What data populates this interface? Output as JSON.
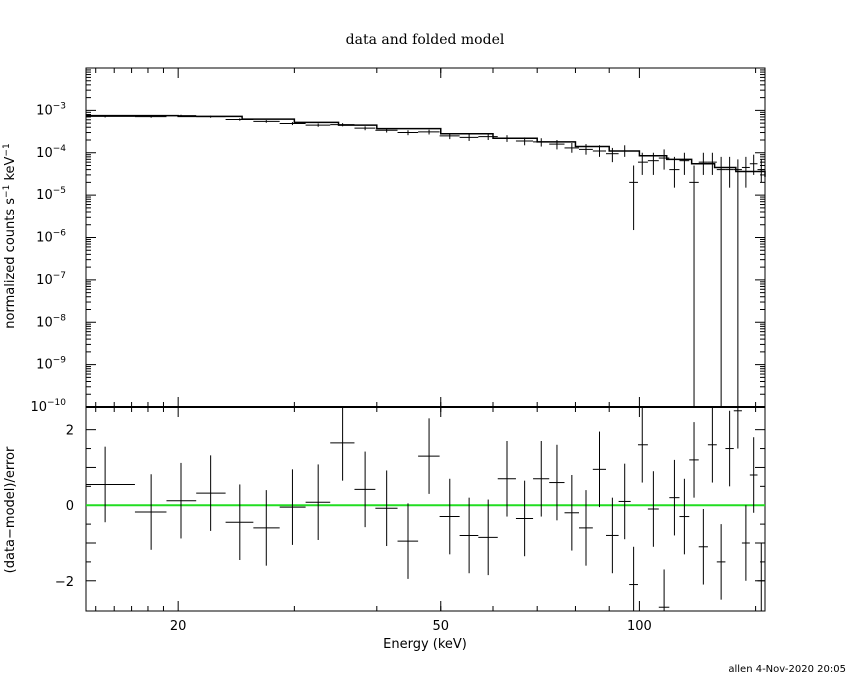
{
  "chart_data": [
    {
      "panel": "top",
      "type": "scatter",
      "title": "data and folded model",
      "xlabel": "Energy (keV)",
      "ylabel": "normalized counts s",
      "ylabel_sup1": "−1",
      "ylabel_mid": "keV",
      "ylabel_sup2": "−1",
      "x_scale": "log",
      "y_scale": "log",
      "xlim": [
        14.5,
        155
      ],
      "ylim": [
        1e-10,
        0.01
      ],
      "x_ticks": [
        20,
        50,
        100
      ],
      "y_ticks": [
        {
          "base": "10",
          "exp": "−3",
          "value": 0.001
        },
        {
          "base": "10",
          "exp": "−4",
          "value": 0.0001
        },
        {
          "base": "10",
          "exp": "−5",
          "value": 1e-05
        },
        {
          "base": "10",
          "exp": "−6",
          "value": 1e-06
        },
        {
          "base": "10",
          "exp": "−7",
          "value": 1e-07
        },
        {
          "base": "10",
          "exp": "−8",
          "value": 1e-08
        },
        {
          "base": "10",
          "exp": "−9",
          "value": 1e-09
        },
        {
          "base": "10",
          "exp": "−10",
          "value": 1e-10
        }
      ],
      "series": [
        {
          "kind": "data",
          "points": [
            {
              "x": 15.5,
              "xlo": 14.5,
              "xhi": 17.2,
              "y": 0.00072,
              "ylo": 0.00068,
              "yhi": 0.00076
            },
            {
              "x": 18.2,
              "xlo": 17.2,
              "xhi": 19.2,
              "y": 0.00071,
              "ylo": 0.00067,
              "yhi": 0.00075
            },
            {
              "x": 20.2,
              "xlo": 19.2,
              "xhi": 21.3,
              "y": 0.00075,
              "ylo": 0.00071,
              "yhi": 0.00079
            },
            {
              "x": 22.4,
              "xlo": 21.3,
              "xhi": 23.6,
              "y": 0.00071,
              "ylo": 0.00067,
              "yhi": 0.00075
            },
            {
              "x": 24.8,
              "xlo": 23.6,
              "xhi": 26.0,
              "y": 0.00061,
              "ylo": 0.00057,
              "yhi": 0.00065
            },
            {
              "x": 27.2,
              "xlo": 26.0,
              "xhi": 28.5,
              "y": 0.00055,
              "ylo": 0.00051,
              "yhi": 0.00059
            },
            {
              "x": 29.8,
              "xlo": 28.5,
              "xhi": 31.2,
              "y": 0.00049,
              "ylo": 0.00045,
              "yhi": 0.00053
            },
            {
              "x": 32.6,
              "xlo": 31.2,
              "xhi": 34.0,
              "y": 0.00045,
              "ylo": 0.00041,
              "yhi": 0.00049
            },
            {
              "x": 35.5,
              "xlo": 34.0,
              "xhi": 37.0,
              "y": 0.00046,
              "ylo": 0.00042,
              "yhi": 0.0005
            },
            {
              "x": 38.4,
              "xlo": 37.0,
              "xhi": 39.8,
              "y": 0.00038,
              "ylo": 0.00034,
              "yhi": 0.00042
            },
            {
              "x": 41.4,
              "xlo": 39.8,
              "xhi": 43.0,
              "y": 0.00034,
              "ylo": 0.0003,
              "yhi": 0.00038
            },
            {
              "x": 44.6,
              "xlo": 43.0,
              "xhi": 46.2,
              "y": 0.0003,
              "ylo": 0.00026,
              "yhi": 0.00034
            },
            {
              "x": 48.0,
              "xlo": 46.2,
              "xhi": 49.8,
              "y": 0.00031,
              "ylo": 0.00027,
              "yhi": 0.00035
            },
            {
              "x": 51.6,
              "xlo": 49.8,
              "xhi": 53.4,
              "y": 0.00025,
              "ylo": 0.00021,
              "yhi": 0.00029
            },
            {
              "x": 55.2,
              "xlo": 53.4,
              "xhi": 57.0,
              "y": 0.00023,
              "ylo": 0.00019,
              "yhi": 0.00027
            },
            {
              "x": 59.0,
              "xlo": 57.0,
              "xhi": 61.0,
              "y": 0.00024,
              "ylo": 0.0002,
              "yhi": 0.00028
            },
            {
              "x": 63.0,
              "xlo": 61.0,
              "xhi": 65.0,
              "y": 0.00022,
              "ylo": 0.00018,
              "yhi": 0.00026
            },
            {
              "x": 67.0,
              "xlo": 65.0,
              "xhi": 69.0,
              "y": 0.00019,
              "ylo": 0.00015,
              "yhi": 0.00023
            },
            {
              "x": 71.0,
              "xlo": 69.0,
              "xhi": 73.0,
              "y": 0.00018,
              "ylo": 0.00014,
              "yhi": 0.00022
            },
            {
              "x": 75.0,
              "xlo": 73.0,
              "xhi": 77.0,
              "y": 0.00016,
              "ylo": 0.00012,
              "yhi": 0.0002
            },
            {
              "x": 79.0,
              "xlo": 77.0,
              "xhi": 81.0,
              "y": 0.00013,
              "ylo": 0.0001,
              "yhi": 0.00017
            },
            {
              "x": 83.0,
              "xlo": 81.0,
              "xhi": 85.0,
              "y": 0.00012,
              "ylo": 9e-05,
              "yhi": 0.00016
            },
            {
              "x": 87.0,
              "xlo": 85.0,
              "xhi": 89.0,
              "y": 0.00011,
              "ylo": 8e-05,
              "yhi": 0.00015
            },
            {
              "x": 91.0,
              "xlo": 89.0,
              "xhi": 93.0,
              "y": 9.5e-05,
              "ylo": 6e-05,
              "yhi": 0.00013
            },
            {
              "x": 95.0,
              "xlo": 93.0,
              "xhi": 97.0,
              "y": 0.00011,
              "ylo": 8e-05,
              "yhi": 0.00015
            },
            {
              "x": 98.0,
              "xlo": 96.5,
              "xhi": 99.5,
              "y": 2e-05,
              "ylo": 1.5e-06,
              "yhi": 5e-05
            },
            {
              "x": 101.0,
              "xlo": 99.5,
              "xhi": 103.0,
              "y": 6e-05,
              "ylo": 3e-05,
              "yhi": 0.0001
            },
            {
              "x": 105.0,
              "xlo": 103.0,
              "xhi": 107.0,
              "y": 6.5e-05,
              "ylo": 3e-05,
              "yhi": 0.0001
            },
            {
              "x": 109.0,
              "xlo": 107.0,
              "xhi": 111.0,
              "y": 7.5e-05,
              "ylo": 4e-05,
              "yhi": 0.00012
            },
            {
              "x": 113.0,
              "xlo": 111.0,
              "xhi": 115.0,
              "y": 4e-05,
              "ylo": 1.5e-05,
              "yhi": 8e-05
            },
            {
              "x": 117.0,
              "xlo": 115.0,
              "xhi": 119.0,
              "y": 6.5e-05,
              "ylo": 3e-05,
              "yhi": 0.0001
            },
            {
              "x": 121.0,
              "xlo": 119.0,
              "xhi": 123.0,
              "y": 2e-05,
              "ylo": 1e-10,
              "yhi": 5e-05
            },
            {
              "x": 125.0,
              "xlo": 123.0,
              "xhi": 127.0,
              "y": 6e-05,
              "ylo": 3e-05,
              "yhi": 0.0001
            },
            {
              "x": 129.0,
              "xlo": 127.0,
              "xhi": 131.0,
              "y": 6e-05,
              "ylo": 3e-05,
              "yhi": 0.0001
            },
            {
              "x": 133.0,
              "xlo": 131.0,
              "xhi": 135.0,
              "y": 4e-05,
              "ylo": 1e-10,
              "yhi": 8e-05
            },
            {
              "x": 137.0,
              "xlo": 135.0,
              "xhi": 139.0,
              "y": 4e-05,
              "ylo": 1.5e-05,
              "yhi": 8e-05
            },
            {
              "x": 141.0,
              "xlo": 139.0,
              "xhi": 143.0,
              "y": 4e-05,
              "ylo": 1e-10,
              "yhi": 7e-05
            },
            {
              "x": 145.0,
              "xlo": 143.0,
              "xhi": 147.0,
              "y": 4.5e-05,
              "ylo": 1.5e-05,
              "yhi": 8e-05
            },
            {
              "x": 149.0,
              "xlo": 147.0,
              "xhi": 151.0,
              "y": 5.5e-05,
              "ylo": 3e-05,
              "yhi": 9e-05
            },
            {
              "x": 153.0,
              "xlo": 151.0,
              "xhi": 155.0,
              "y": 4e-05,
              "ylo": 2e-05,
              "yhi": 7e-05
            }
          ]
        },
        {
          "kind": "model",
          "step": [
            {
              "x": 14.5,
              "y": 0.00075
            },
            {
              "x": 20.0,
              "y": 0.00072
            },
            {
              "x": 25.0,
              "y": 0.00062
            },
            {
              "x": 30.0,
              "y": 0.00052
            },
            {
              "x": 35.0,
              "y": 0.00045
            },
            {
              "x": 40.0,
              "y": 0.00037
            },
            {
              "x": 50.0,
              "y": 0.00028
            },
            {
              "x": 60.0,
              "y": 0.00022
            },
            {
              "x": 70.0,
              "y": 0.00018
            },
            {
              "x": 80.0,
              "y": 0.00014
            },
            {
              "x": 90.0,
              "y": 0.00011
            },
            {
              "x": 100.0,
              "y": 8.5e-05
            },
            {
              "x": 110.0,
              "y": 7e-05
            },
            {
              "x": 120.0,
              "y": 5.5e-05
            },
            {
              "x": 130.0,
              "y": 4.5e-05
            },
            {
              "x": 140.0,
              "y": 3.6e-05
            },
            {
              "x": 155.0,
              "y": 2.7e-05
            }
          ]
        }
      ]
    },
    {
      "panel": "bottom",
      "type": "scatter",
      "xlabel": "Energy (keV)",
      "ylabel": "(data−model)/error",
      "x_scale": "log",
      "y_scale": "linear",
      "xlim": [
        14.5,
        155
      ],
      "ylim": [
        -2.8,
        2.6
      ],
      "y_ticks": [
        2,
        0,
        -2
      ],
      "y_tick_labels": [
        "2",
        "0",
        "−2"
      ],
      "x_ticks": [
        20,
        50,
        100
      ],
      "zero_line_color": "#22dd22",
      "points": [
        {
          "x": 15.5,
          "xlo": 14.5,
          "xhi": 17.2,
          "y": 0.55,
          "ylo": -0.45,
          "yhi": 1.55
        },
        {
          "x": 18.2,
          "xlo": 17.2,
          "xhi": 19.2,
          "y": -0.18,
          "ylo": -1.18,
          "yhi": 0.82
        },
        {
          "x": 20.2,
          "xlo": 19.2,
          "xhi": 21.3,
          "y": 0.12,
          "ylo": -0.88,
          "yhi": 1.12
        },
        {
          "x": 22.4,
          "xlo": 21.3,
          "xhi": 23.6,
          "y": 0.32,
          "ylo": -0.68,
          "yhi": 1.32
        },
        {
          "x": 24.8,
          "xlo": 23.6,
          "xhi": 26.0,
          "y": -0.45,
          "ylo": -1.45,
          "yhi": 0.55
        },
        {
          "x": 27.2,
          "xlo": 26.0,
          "xhi": 28.5,
          "y": -0.6,
          "ylo": -1.6,
          "yhi": 0.4
        },
        {
          "x": 29.8,
          "xlo": 28.5,
          "xhi": 31.2,
          "y": -0.05,
          "ylo": -1.05,
          "yhi": 0.95
        },
        {
          "x": 32.6,
          "xlo": 31.2,
          "xhi": 34.0,
          "y": 0.08,
          "ylo": -0.92,
          "yhi": 1.08
        },
        {
          "x": 35.5,
          "xlo": 34.0,
          "xhi": 37.0,
          "y": 1.65,
          "ylo": 0.65,
          "yhi": 2.65
        },
        {
          "x": 38.4,
          "xlo": 37.0,
          "xhi": 39.8,
          "y": 0.42,
          "ylo": -0.58,
          "yhi": 1.42
        },
        {
          "x": 41.4,
          "xlo": 39.8,
          "xhi": 43.0,
          "y": -0.08,
          "ylo": -1.08,
          "yhi": 0.92
        },
        {
          "x": 44.6,
          "xlo": 43.0,
          "xhi": 46.2,
          "y": -0.95,
          "ylo": -1.95,
          "yhi": 0.05
        },
        {
          "x": 48.0,
          "xlo": 46.2,
          "xhi": 49.8,
          "y": 1.3,
          "ylo": 0.3,
          "yhi": 2.3
        },
        {
          "x": 51.6,
          "xlo": 49.8,
          "xhi": 53.4,
          "y": -0.3,
          "ylo": -1.3,
          "yhi": 0.7
        },
        {
          "x": 55.2,
          "xlo": 53.4,
          "xhi": 57.0,
          "y": -0.8,
          "ylo": -1.8,
          "yhi": 0.2
        },
        {
          "x": 59.0,
          "xlo": 57.0,
          "xhi": 61.0,
          "y": -0.85,
          "ylo": -1.85,
          "yhi": 0.15
        },
        {
          "x": 63.0,
          "xlo": 61.0,
          "xhi": 65.0,
          "y": 0.7,
          "ylo": -0.3,
          "yhi": 1.7
        },
        {
          "x": 67.0,
          "xlo": 65.0,
          "xhi": 69.0,
          "y": -0.35,
          "ylo": -1.35,
          "yhi": 0.65
        },
        {
          "x": 71.0,
          "xlo": 69.0,
          "xhi": 73.0,
          "y": 0.7,
          "ylo": -0.3,
          "yhi": 1.7
        },
        {
          "x": 75.0,
          "xlo": 73.0,
          "xhi": 77.0,
          "y": 0.6,
          "ylo": -0.4,
          "yhi": 1.6
        },
        {
          "x": 79.0,
          "xlo": 77.0,
          "xhi": 81.0,
          "y": -0.2,
          "ylo": -1.2,
          "yhi": 0.8
        },
        {
          "x": 83.0,
          "xlo": 81.0,
          "xhi": 85.0,
          "y": -0.6,
          "ylo": -1.6,
          "yhi": 0.4
        },
        {
          "x": 87.0,
          "xlo": 85.0,
          "xhi": 89.0,
          "y": 0.95,
          "ylo": -0.05,
          "yhi": 1.95
        },
        {
          "x": 91.0,
          "xlo": 89.0,
          "xhi": 93.0,
          "y": -0.8,
          "ylo": -1.8,
          "yhi": 0.2
        },
        {
          "x": 95.0,
          "xlo": 93.0,
          "xhi": 97.0,
          "y": 0.1,
          "ylo": -0.9,
          "yhi": 1.1
        },
        {
          "x": 98.0,
          "xlo": 96.5,
          "xhi": 99.5,
          "y": -2.1,
          "ylo": -2.8,
          "yhi": -1.1
        },
        {
          "x": 101.0,
          "xlo": 99.5,
          "xhi": 103.0,
          "y": 1.6,
          "ylo": 0.6,
          "yhi": 2.6
        },
        {
          "x": 105.0,
          "xlo": 103.0,
          "xhi": 107.0,
          "y": -0.1,
          "ylo": -1.1,
          "yhi": 0.9
        },
        {
          "x": 109.0,
          "xlo": 107.0,
          "xhi": 111.0,
          "y": -2.7,
          "ylo": -2.8,
          "yhi": -1.7
        },
        {
          "x": 113.0,
          "xlo": 111.0,
          "xhi": 115.0,
          "y": 0.2,
          "ylo": -0.8,
          "yhi": 1.2
        },
        {
          "x": 117.0,
          "xlo": 115.0,
          "xhi": 119.0,
          "y": -0.3,
          "ylo": -1.3,
          "yhi": 0.7
        },
        {
          "x": 121.0,
          "xlo": 119.0,
          "xhi": 123.0,
          "y": 1.2,
          "ylo": 0.2,
          "yhi": 2.2
        },
        {
          "x": 125.0,
          "xlo": 123.0,
          "xhi": 127.0,
          "y": -1.1,
          "ylo": -2.1,
          "yhi": -0.1
        },
        {
          "x": 129.0,
          "xlo": 127.0,
          "xhi": 131.0,
          "y": 1.6,
          "ylo": 0.6,
          "yhi": 2.6
        },
        {
          "x": 133.0,
          "xlo": 131.0,
          "xhi": 135.0,
          "y": -1.5,
          "ylo": -2.5,
          "yhi": -0.5
        },
        {
          "x": 137.0,
          "xlo": 135.0,
          "xhi": 139.0,
          "y": 1.5,
          "ylo": 0.5,
          "yhi": 2.5
        },
        {
          "x": 141.0,
          "xlo": 139.0,
          "xhi": 143.0,
          "y": 2.5,
          "ylo": 1.5,
          "yhi": 2.6
        },
        {
          "x": 145.0,
          "xlo": 143.0,
          "xhi": 147.0,
          "y": -1.0,
          "ylo": -2.0,
          "yhi": 0.0
        },
        {
          "x": 149.0,
          "xlo": 147.0,
          "xhi": 151.0,
          "y": 0.8,
          "ylo": -0.2,
          "yhi": 1.8
        },
        {
          "x": 153.0,
          "xlo": 151.0,
          "xhi": 155.0,
          "y": -2.0,
          "ylo": -2.8,
          "yhi": -1.0
        }
      ]
    }
  ],
  "footer": {
    "stamp": "allen   4-Nov-2020 20:05"
  }
}
